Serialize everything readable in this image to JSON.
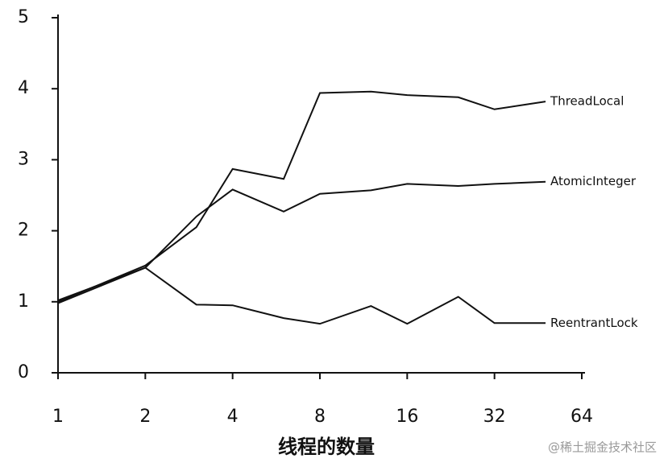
{
  "chart_data": {
    "type": "line",
    "xlabel": "线程的数量",
    "xscale": "log2",
    "x": [
      1,
      2,
      3,
      4,
      6,
      8,
      12,
      16,
      24,
      32,
      48
    ],
    "series": [
      {
        "name": "ThreadLocal",
        "color": "#111111",
        "values": [
          1.0,
          1.51,
          2.05,
          2.87,
          2.73,
          3.94,
          3.96,
          3.91,
          3.88,
          3.71,
          3.82
        ]
      },
      {
        "name": "AtomicInteger",
        "color": "#111111",
        "values": [
          0.98,
          1.48,
          2.2,
          2.58,
          2.27,
          2.52,
          2.57,
          2.66,
          2.63,
          2.66,
          2.69
        ]
      },
      {
        "name": "ReentrantLock",
        "color": "#111111",
        "values": [
          1.02,
          1.48,
          0.96,
          0.95,
          0.77,
          0.69,
          0.94,
          0.69,
          1.07,
          0.7,
          0.7
        ]
      }
    ],
    "xlim": [
      1,
      64
    ],
    "xticks": [
      1,
      2,
      4,
      8,
      16,
      32,
      64
    ],
    "ylim": [
      0,
      5
    ],
    "yticks": [
      0,
      1,
      2,
      3,
      4,
      5
    ],
    "legend": "line-end",
    "annotation": "@稀土掘金技术社区"
  }
}
